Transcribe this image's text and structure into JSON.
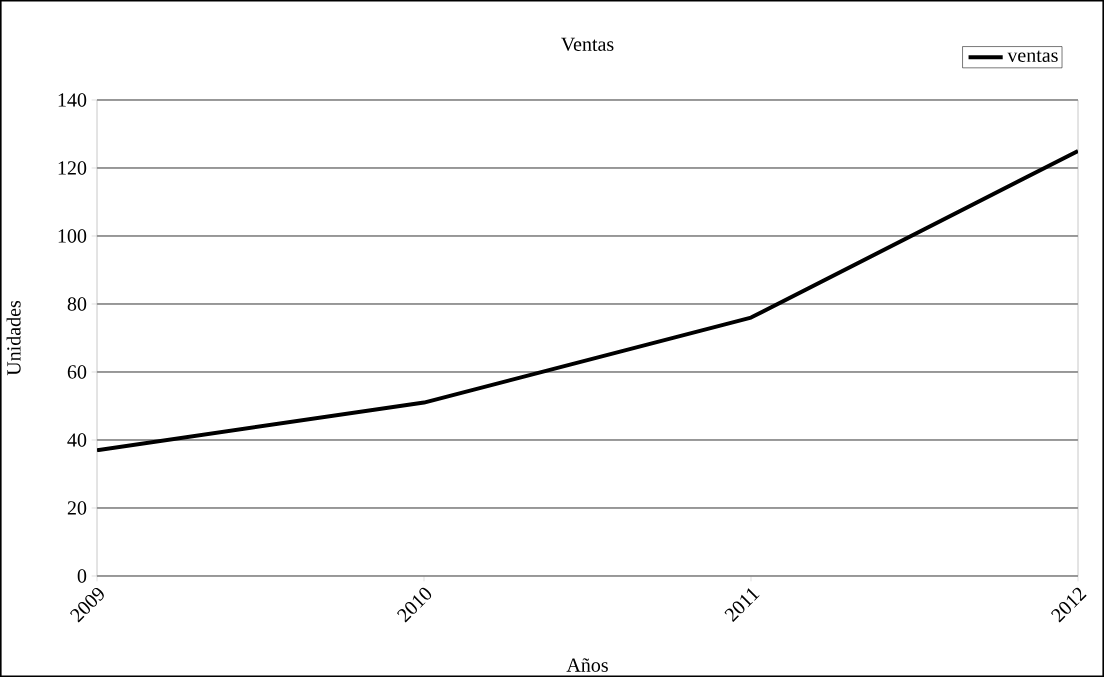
{
  "chart_data": {
    "type": "line",
    "title": "Ventas",
    "xlabel": "Años",
    "ylabel": "Unidades",
    "categories": [
      "2009",
      "2010",
      "2011",
      "2012"
    ],
    "series": [
      {
        "name": "ventas",
        "color": "#000000",
        "values": [
          37,
          51,
          76,
          125
        ]
      }
    ],
    "ylim": [
      0,
      140
    ],
    "yticks": [
      0,
      20,
      40,
      60,
      80,
      100,
      120,
      140
    ],
    "grid": "y",
    "legend": "top right",
    "marker": "none",
    "line_style": "solid"
  }
}
